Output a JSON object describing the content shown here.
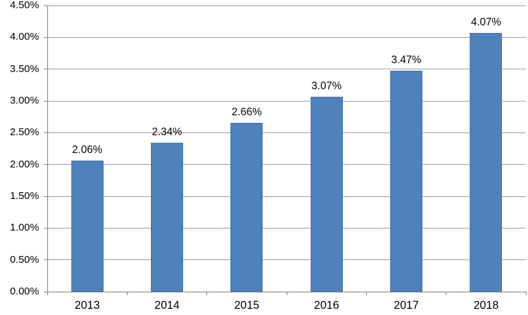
{
  "chart_data": {
    "type": "bar",
    "title": "",
    "xlabel": "",
    "ylabel": "",
    "categories": [
      "2013",
      "2014",
      "2015",
      "2016",
      "2017",
      "2018"
    ],
    "values": [
      2.06,
      2.34,
      2.66,
      3.07,
      3.47,
      4.07
    ],
    "data_labels": [
      "2.06%",
      "2.34%",
      "2.66%",
      "3.07%",
      "3.47%",
      "4.07%"
    ],
    "ytick_labels": [
      "0.00%",
      "0.50%",
      "1.00%",
      "1.50%",
      "2.00%",
      "2.50%",
      "3.00%",
      "3.50%",
      "4.00%",
      "4.50%"
    ],
    "ytick_values": [
      0,
      0.5,
      1.0,
      1.5,
      2.0,
      2.5,
      3.0,
      3.5,
      4.0,
      4.5
    ],
    "ylim": [
      0,
      4.5
    ],
    "grid": true,
    "legend": false,
    "colors": {
      "bar_fill": "#4F81BD",
      "bar_border": "#4374A9",
      "gridline": "#9C9C9C",
      "axis": "#7F7F7F",
      "text": "#000000",
      "background": "#FFFFFF"
    }
  }
}
